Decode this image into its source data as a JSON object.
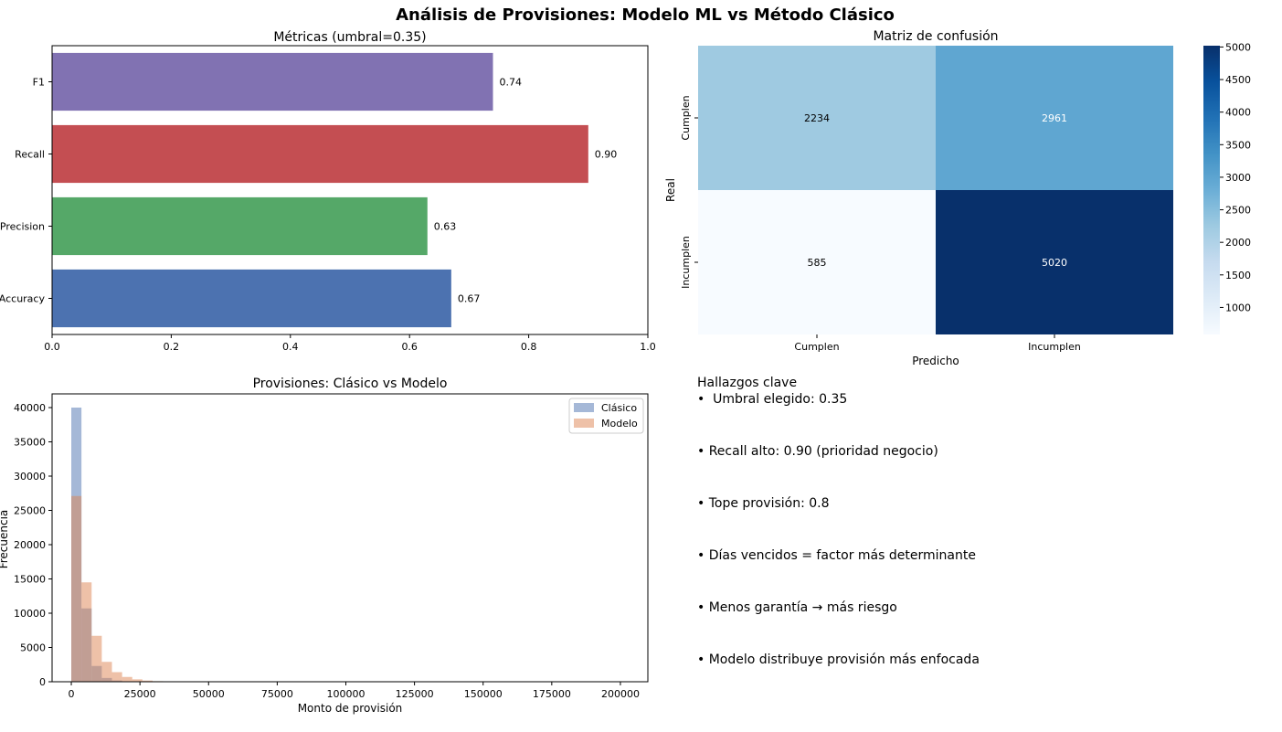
{
  "figure": {
    "title": "Análisis de Provisiones: Modelo ML vs Método Clásico"
  },
  "chart_data": [
    {
      "type": "bar",
      "orientation": "horizontal",
      "title": "Métricas (umbral=0.35)",
      "categories": [
        "Accuracy",
        "Precision",
        "Recall",
        "F1"
      ],
      "values": [
        0.67,
        0.63,
        0.9,
        0.74
      ],
      "value_labels": [
        "0.67",
        "0.63",
        "0.90",
        "0.74"
      ],
      "colors": [
        "#4c72b0",
        "#55a868",
        "#c44e52",
        "#8172b2"
      ],
      "xlim": [
        0,
        1.0
      ],
      "xticks": [
        "0.0",
        "0.2",
        "0.4",
        "0.6",
        "0.8",
        "1.0"
      ],
      "grid": false
    },
    {
      "type": "heatmap",
      "title": "Matriz de confusión",
      "xlabel": "Predicho",
      "ylabel": "Real",
      "x_categories": [
        "Cumplen",
        "Incumplen"
      ],
      "y_categories": [
        "Cumplen",
        "Incumplen"
      ],
      "values": [
        [
          2234,
          2961
        ],
        [
          585,
          5020
        ]
      ],
      "colormap": "Blues",
      "colorbar_range": [
        585,
        5020
      ],
      "colorbar_ticks": [
        "1000",
        "1500",
        "2000",
        "2500",
        "3000",
        "3500",
        "4000",
        "4500",
        "5000"
      ]
    },
    {
      "type": "histogram",
      "title": "Provisiones: Clásico vs Modelo",
      "xlabel": "Monto de provisión",
      "ylabel": "Frecuencia",
      "bin_edges": [
        0,
        3700,
        7400,
        11100,
        14800,
        18500,
        22200,
        25900,
        29600,
        33300,
        37000,
        40700
      ],
      "series": [
        {
          "name": "Clásico",
          "color": "#4c72b0",
          "alpha": 0.5,
          "counts": [
            40000,
            10700,
            2300,
            550,
            180,
            60,
            25,
            10,
            5,
            3,
            1
          ]
        },
        {
          "name": "Modelo",
          "color": "#dd8452",
          "alpha": 0.5,
          "counts": [
            27100,
            14500,
            6700,
            2900,
            1400,
            700,
            350,
            170,
            80,
            40,
            20
          ]
        }
      ],
      "xlim": [
        -7000,
        210000
      ],
      "ylim": [
        0,
        42000
      ],
      "xticks": [
        "0",
        "25000",
        "50000",
        "75000",
        "100000",
        "125000",
        "150000",
        "175000",
        "200000"
      ],
      "yticks": [
        "0",
        "5000",
        "10000",
        "15000",
        "20000",
        "25000",
        "30000",
        "35000",
        "40000"
      ],
      "legend_position": "top-right"
    }
  ],
  "findings": {
    "title": "Hallazgos clave",
    "items": [
      "•  Umbral elegido: 0.35",
      "• Recall alto: 0.90 (prioridad negocio)",
      "• Tope provisión: 0.8",
      "• Días vencidos = factor más determinante",
      "• Menos garantía → más riesgo",
      "• Modelo distribuye provisión más enfocada"
    ]
  }
}
